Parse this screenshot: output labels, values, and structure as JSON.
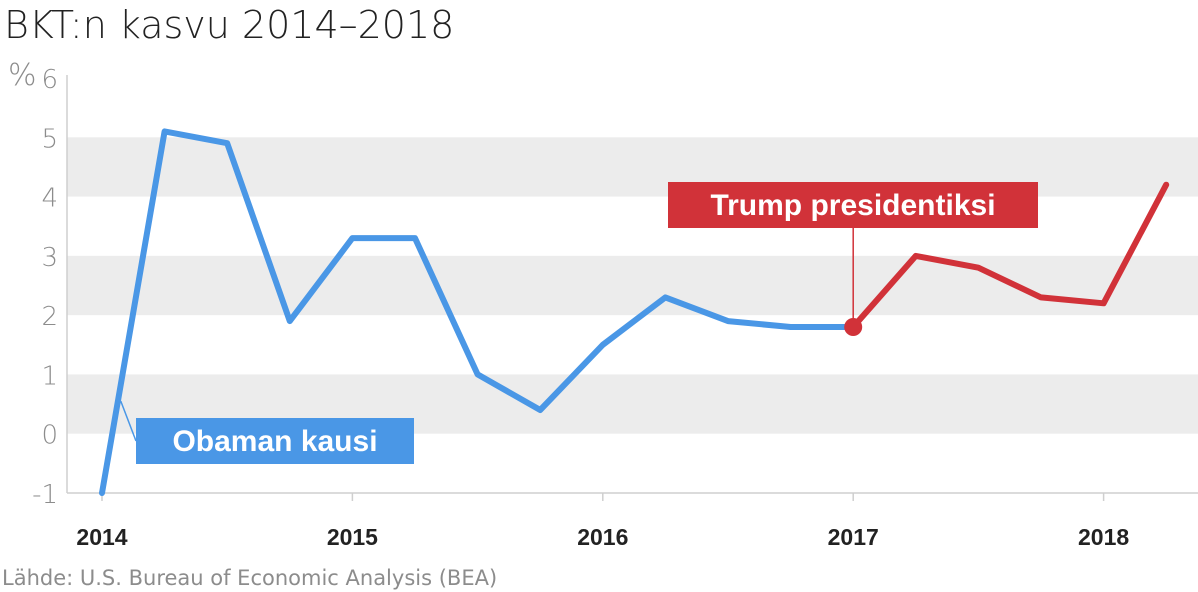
{
  "chart_data": {
    "type": "line",
    "title": "BKT:n kasvu 2014–2018",
    "ylabel": "%",
    "ylim": [
      -1,
      6
    ],
    "yticks": [
      "-1",
      "0",
      "1",
      "2",
      "3",
      "4",
      "5",
      "6"
    ],
    "xticks": [
      {
        "label": "2014",
        "x": 0
      },
      {
        "label": "2015",
        "x": 4
      },
      {
        "label": "2016",
        "x": 8
      },
      {
        "label": "2017",
        "x": 12
      },
      {
        "label": "2018",
        "x": 16
      }
    ],
    "series": [
      {
        "name": "Obaman kausi",
        "color": "#4a97e6",
        "x": [
          0,
          1,
          2,
          3,
          4,
          5,
          6,
          7,
          8,
          9,
          10,
          11,
          12
        ],
        "values": [
          -1.0,
          5.1,
          4.9,
          1.9,
          3.3,
          3.3,
          1.0,
          0.4,
          1.5,
          2.3,
          1.9,
          1.8,
          1.8
        ]
      },
      {
        "name": "Trump presidentiksi",
        "color": "#d13239",
        "x": [
          12,
          13,
          14,
          15,
          16,
          17
        ],
        "values": [
          1.8,
          3.0,
          2.8,
          2.3,
          2.2,
          4.2
        ]
      }
    ],
    "annotations": {
      "obama_label": "Obaman kausi",
      "trump_label": "Trump presidentiksi"
    },
    "grid": "alternating horizontal bands"
  },
  "source": "Lähde: U.S. Bureau of Economic Analysis (BEA)"
}
